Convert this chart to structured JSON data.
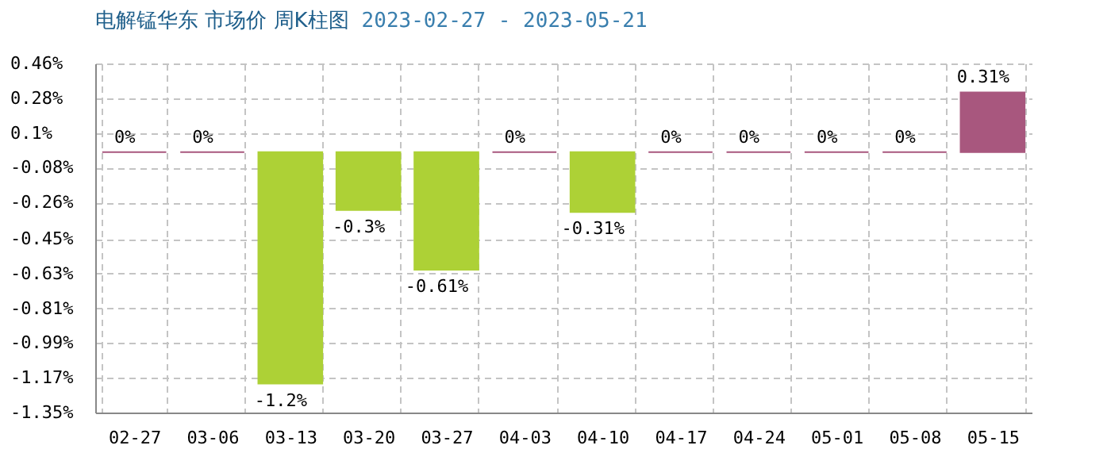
{
  "chart_data": {
    "type": "bar",
    "title": "电解锰华东 市场价 周K柱图",
    "subtitle": "2023-02-27 - 2023-05-21",
    "categories": [
      "02-27",
      "03-06",
      "03-13",
      "03-20",
      "03-27",
      "04-03",
      "04-10",
      "04-17",
      "04-24",
      "05-01",
      "05-08",
      "05-15"
    ],
    "values": [
      0,
      0,
      -1.2,
      -0.3,
      -0.61,
      0,
      -0.31,
      0,
      0,
      0,
      0,
      0.31
    ],
    "colors": [
      "#a8577e",
      "#a8577e",
      "#add136",
      "#add136",
      "#add136",
      "#a8577e",
      "#add136",
      "#a8577e",
      "#a8577e",
      "#a8577e",
      "#a8577e",
      "#a8577e"
    ],
    "value_labels": [
      "0%",
      "0%",
      "-1.2%",
      "-0.3%",
      "-0.61%",
      "0%",
      "-0.31%",
      "0%",
      "0%",
      "0%",
      "0%",
      "0.31%"
    ],
    "ylim": [
      -1.35,
      0.46
    ],
    "yticks": [
      {
        "value": 0.46,
        "label": "0.46%"
      },
      {
        "value": 0.28,
        "label": "0.28%"
      },
      {
        "value": 0.1,
        "label": "0.1%"
      },
      {
        "value": -0.08,
        "label": "-0.08%"
      },
      {
        "value": -0.26,
        "label": "-0.26%"
      },
      {
        "value": -0.45,
        "label": "-0.45%"
      },
      {
        "value": -0.63,
        "label": "-0.63%"
      },
      {
        "value": -0.81,
        "label": "-0.81%"
      },
      {
        "value": -0.99,
        "label": "-0.99%"
      },
      {
        "value": -1.17,
        "label": "-1.17%"
      },
      {
        "value": -1.35,
        "label": "-1.35%"
      }
    ],
    "grid": true
  }
}
